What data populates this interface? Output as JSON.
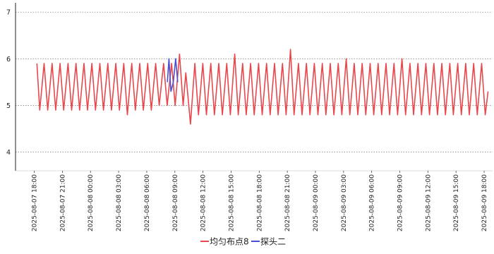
{
  "chart_data": {
    "type": "line",
    "title": "",
    "xlabel": "",
    "ylabel": "",
    "ylim": [
      3.6,
      7.2
    ],
    "y_ticks": [
      "4",
      "5",
      "6",
      "7"
    ],
    "y_tick_values": [
      4,
      5,
      6,
      7
    ],
    "grid": "horizontal dotted",
    "legend_position": "bottom-center",
    "x_tick_labels": [
      "2025-08-07 18:00",
      "2025-08-07 21:00",
      "2025-08-08 00:00",
      "2025-08-08 03:00",
      "2025-08-08 06:00",
      "2025-08-08 09:00",
      "2025-08-08 12:00",
      "2025-08-08 15:00",
      "2025-08-08 18:00",
      "2025-08-08 21:00",
      "2025-08-09 00:00",
      "2025-08-09 03:00",
      "2025-08-09 06:00",
      "2025-08-09 09:00",
      "2025-08-09 12:00",
      "2025-08-09 15:00",
      "2025-08-09 18:00"
    ],
    "series": [
      {
        "name": "均匀布点8",
        "color": "#e8474b",
        "points": [
          [
            "2025-08-07 18:17",
            5.9
          ],
          [
            "2025-08-07 18:35",
            4.9
          ],
          [
            "2025-08-07 19:03",
            5.9
          ],
          [
            "2025-08-07 19:26",
            4.9
          ],
          [
            "2025-08-07 19:54",
            5.9
          ],
          [
            "2025-08-07 20:17",
            4.9
          ],
          [
            "2025-08-07 20:45",
            5.9
          ],
          [
            "2025-08-07 21:08",
            4.9
          ],
          [
            "2025-08-07 21:36",
            5.9
          ],
          [
            "2025-08-07 21:59",
            4.9
          ],
          [
            "2025-08-07 22:27",
            5.9
          ],
          [
            "2025-08-07 22:50",
            4.9
          ],
          [
            "2025-08-07 23:18",
            5.9
          ],
          [
            "2025-08-07 23:41",
            4.9
          ],
          [
            "2025-08-08 00:09",
            5.9
          ],
          [
            "2025-08-08 00:32",
            4.9
          ],
          [
            "2025-08-08 01:00",
            5.9
          ],
          [
            "2025-08-08 01:23",
            4.9
          ],
          [
            "2025-08-08 01:51",
            5.9
          ],
          [
            "2025-08-08 02:14",
            4.9
          ],
          [
            "2025-08-08 02:42",
            5.9
          ],
          [
            "2025-08-08 03:05",
            4.9
          ],
          [
            "2025-08-08 03:33",
            5.9
          ],
          [
            "2025-08-08 03:56",
            4.8
          ],
          [
            "2025-08-08 04:24",
            5.9
          ],
          [
            "2025-08-08 04:47",
            4.9
          ],
          [
            "2025-08-08 05:15",
            5.9
          ],
          [
            "2025-08-08 05:38",
            4.9
          ],
          [
            "2025-08-08 06:06",
            5.9
          ],
          [
            "2025-08-08 06:29",
            4.9
          ],
          [
            "2025-08-08 06:57",
            5.9
          ],
          [
            "2025-08-08 07:20",
            5.0
          ],
          [
            "2025-08-08 07:48",
            5.9
          ],
          [
            "2025-08-08 08:11",
            5.0
          ],
          [
            "2025-08-08 08:39",
            5.9
          ],
          [
            "2025-08-08 09:02",
            5.0
          ],
          [
            "2025-08-08 09:30",
            6.1
          ],
          [
            "2025-08-08 09:53",
            5.0
          ],
          [
            "2025-08-08 10:10",
            5.7
          ],
          [
            "2025-08-08 10:40",
            4.6
          ],
          [
            "2025-08-08 11:08",
            5.9
          ],
          [
            "2025-08-08 11:31",
            4.8
          ],
          [
            "2025-08-08 11:59",
            5.9
          ],
          [
            "2025-08-08 12:22",
            4.8
          ],
          [
            "2025-08-08 12:50",
            5.9
          ],
          [
            "2025-08-08 13:13",
            4.8
          ],
          [
            "2025-08-08 13:41",
            5.9
          ],
          [
            "2025-08-08 14:04",
            4.8
          ],
          [
            "2025-08-08 14:32",
            5.9
          ],
          [
            "2025-08-08 14:55",
            4.8
          ],
          [
            "2025-08-08 15:23",
            6.1
          ],
          [
            "2025-08-08 15:46",
            4.8
          ],
          [
            "2025-08-08 16:14",
            5.9
          ],
          [
            "2025-08-08 16:37",
            4.8
          ],
          [
            "2025-08-08 17:05",
            5.9
          ],
          [
            "2025-08-08 17:28",
            4.8
          ],
          [
            "2025-08-08 17:56",
            5.9
          ],
          [
            "2025-08-08 18:19",
            4.8
          ],
          [
            "2025-08-08 18:47",
            5.9
          ],
          [
            "2025-08-08 19:10",
            4.8
          ],
          [
            "2025-08-08 19:38",
            5.9
          ],
          [
            "2025-08-08 20:01",
            4.8
          ],
          [
            "2025-08-08 20:29",
            5.9
          ],
          [
            "2025-08-08 20:52",
            4.8
          ],
          [
            "2025-08-08 21:20",
            6.2
          ],
          [
            "2025-08-08 21:43",
            4.8
          ],
          [
            "2025-08-08 22:11",
            5.9
          ],
          [
            "2025-08-08 22:34",
            4.8
          ],
          [
            "2025-08-08 23:02",
            5.9
          ],
          [
            "2025-08-08 23:25",
            4.8
          ],
          [
            "2025-08-08 23:53",
            5.9
          ],
          [
            "2025-08-09 00:16",
            4.8
          ],
          [
            "2025-08-09 00:44",
            5.9
          ],
          [
            "2025-08-09 01:07",
            4.8
          ],
          [
            "2025-08-09 01:35",
            5.9
          ],
          [
            "2025-08-09 01:58",
            4.8
          ],
          [
            "2025-08-09 02:26",
            5.9
          ],
          [
            "2025-08-09 02:49",
            4.8
          ],
          [
            "2025-08-09 03:17",
            6.0
          ],
          [
            "2025-08-09 03:40",
            4.8
          ],
          [
            "2025-08-09 04:08",
            5.9
          ],
          [
            "2025-08-09 04:31",
            4.8
          ],
          [
            "2025-08-09 04:59",
            5.9
          ],
          [
            "2025-08-09 05:22",
            4.8
          ],
          [
            "2025-08-09 05:50",
            5.9
          ],
          [
            "2025-08-09 06:13",
            4.8
          ],
          [
            "2025-08-09 06:41",
            5.9
          ],
          [
            "2025-08-09 07:04",
            4.8
          ],
          [
            "2025-08-09 07:32",
            5.9
          ],
          [
            "2025-08-09 07:55",
            4.8
          ],
          [
            "2025-08-09 08:23",
            5.9
          ],
          [
            "2025-08-09 08:46",
            4.8
          ],
          [
            "2025-08-09 09:14",
            6.0
          ],
          [
            "2025-08-09 09:37",
            4.8
          ],
          [
            "2025-08-09 10:05",
            5.9
          ],
          [
            "2025-08-09 10:28",
            4.8
          ],
          [
            "2025-08-09 10:56",
            5.9
          ],
          [
            "2025-08-09 11:19",
            4.8
          ],
          [
            "2025-08-09 11:47",
            5.9
          ],
          [
            "2025-08-09 12:10",
            4.8
          ],
          [
            "2025-08-09 12:38",
            5.9
          ],
          [
            "2025-08-09 13:01",
            4.8
          ],
          [
            "2025-08-09 13:29",
            5.9
          ],
          [
            "2025-08-09 13:52",
            4.8
          ],
          [
            "2025-08-09 14:20",
            5.9
          ],
          [
            "2025-08-09 14:43",
            4.8
          ],
          [
            "2025-08-09 15:11",
            5.9
          ],
          [
            "2025-08-09 15:34",
            4.8
          ],
          [
            "2025-08-09 16:02",
            5.9
          ],
          [
            "2025-08-09 16:25",
            4.8
          ],
          [
            "2025-08-09 16:53",
            5.9
          ],
          [
            "2025-08-09 17:16",
            4.8
          ],
          [
            "2025-08-09 17:44",
            5.9
          ],
          [
            "2025-08-09 18:07",
            4.8
          ],
          [
            "2025-08-09 18:25",
            5.3
          ]
        ]
      },
      {
        "name": "探头二",
        "color": "#4a4fd0",
        "points": [
          [
            "2025-08-08 08:12",
            5.5
          ],
          [
            "2025-08-08 08:22",
            6.0
          ],
          [
            "2025-08-08 08:35",
            5.3
          ],
          [
            "2025-08-08 08:50",
            5.5
          ],
          [
            "2025-08-08 09:05",
            6.0
          ],
          [
            "2025-08-08 09:18",
            5.5
          ]
        ]
      }
    ]
  }
}
